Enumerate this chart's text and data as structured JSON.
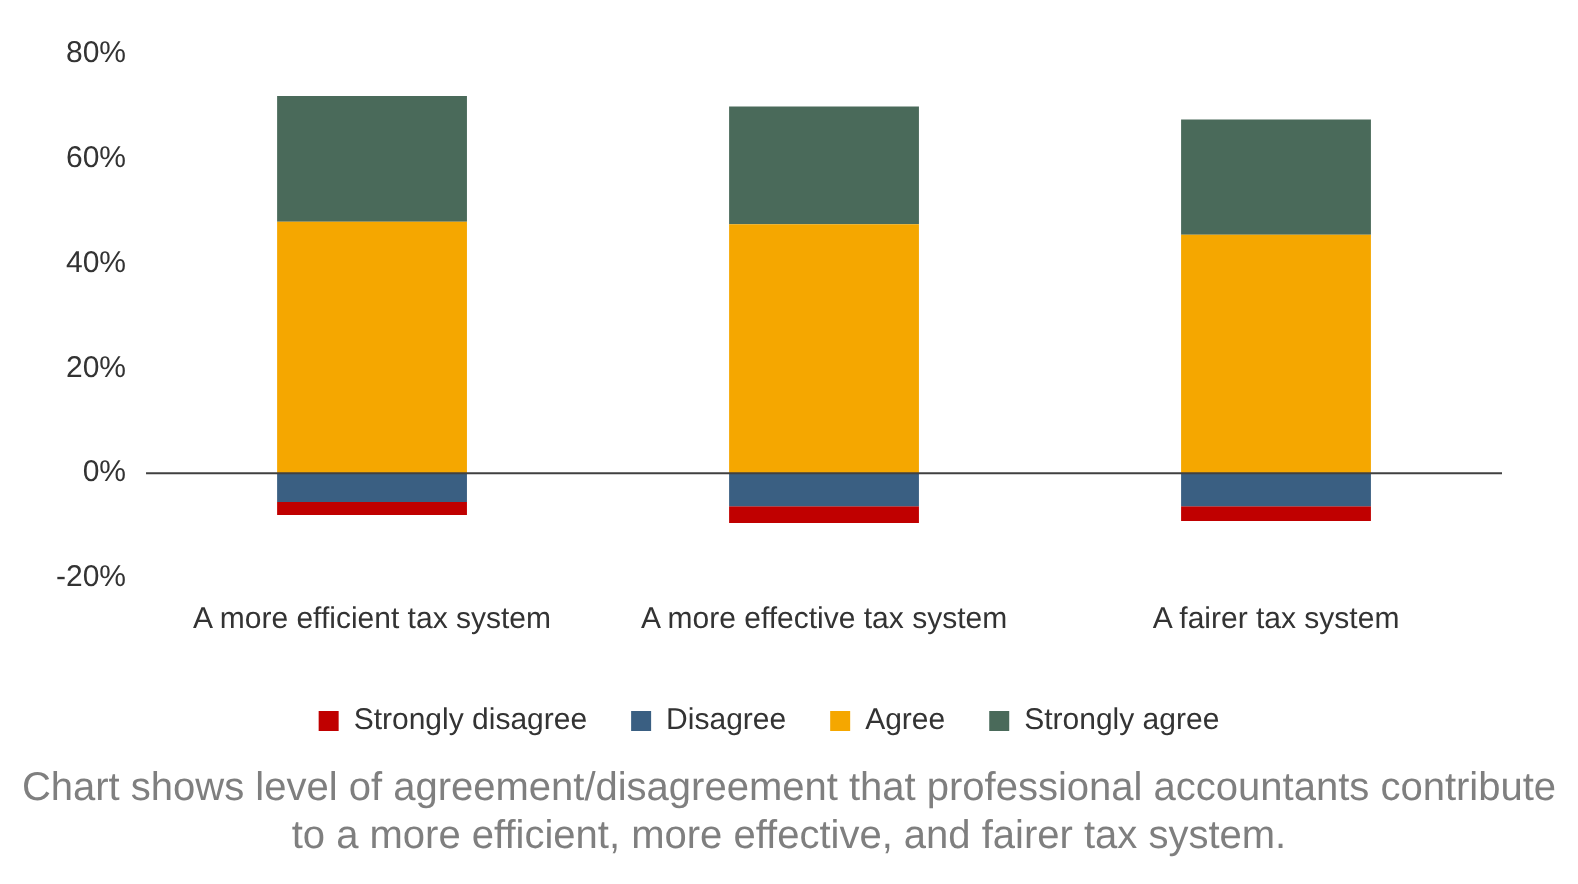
{
  "chart_data": {
    "type": "bar",
    "stacked": true,
    "categories": [
      "A more efficient tax system",
      "A more effective tax system",
      "A fairer tax system"
    ],
    "series": [
      {
        "name": "Disagree",
        "color": "#3a5f82",
        "values": [
          -5.5,
          -6.3,
          -6.3
        ]
      },
      {
        "name": "Strongly disagree",
        "color": "#c00000",
        "values": [
          -2.5,
          -3.2,
          -2.8
        ]
      },
      {
        "name": "Agree",
        "color": "#f5a700",
        "values": [
          48,
          47.5,
          45.5
        ]
      },
      {
        "name": "Strongly agree",
        "color": "#4a6a5a",
        "values": [
          24,
          22.5,
          22
        ]
      }
    ],
    "ylim": [
      -20,
      80
    ],
    "yticks": [
      {
        "value": -20,
        "label": "-20%"
      },
      {
        "value": 0,
        "label": "0%"
      },
      {
        "value": 20,
        "label": "20%"
      },
      {
        "value": 40,
        "label": "40%"
      },
      {
        "value": 60,
        "label": "60%"
      },
      {
        "value": 80,
        "label": "80%"
      }
    ],
    "grid": false,
    "legend": "bottom",
    "ref_lines": [
      {
        "axis": "y",
        "value": 0,
        "color": "#404040"
      }
    ],
    "annotations": [
      "Chart shows level of agreement/disagreement that professional accountants contribute to a more efficient, more effective, and fairer tax system."
    ]
  }
}
